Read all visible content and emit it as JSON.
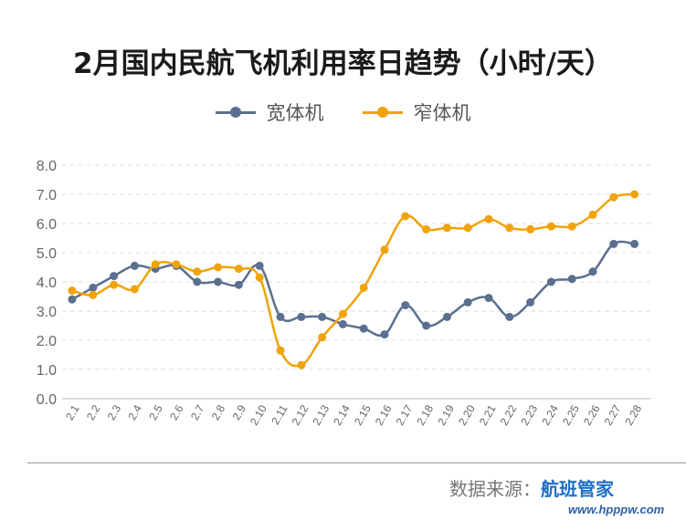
{
  "chart_data": {
    "type": "line",
    "title": "2月国内民航飞机利用率日趋势（小时/天）",
    "categories": [
      "2.1",
      "2.2",
      "2.3",
      "2.4",
      "2.5",
      "2.6",
      "2.7",
      "2.8",
      "2.9",
      "2.10",
      "2.11",
      "2.12",
      "2.13",
      "2.14",
      "2.15",
      "2.16",
      "2.17",
      "2.18",
      "2.19",
      "2.20",
      "2.21",
      "2.22",
      "2.23",
      "2.24",
      "2.25",
      "2.26",
      "2.27",
      "2.28"
    ],
    "series": [
      {
        "name": "宽体机",
        "color": "#5b6f8f",
        "values": [
          3.4,
          3.8,
          4.2,
          4.55,
          4.45,
          4.55,
          4.0,
          4.0,
          3.9,
          4.55,
          2.8,
          2.8,
          2.8,
          2.55,
          2.4,
          2.2,
          3.2,
          2.5,
          2.8,
          3.3,
          3.45,
          2.8,
          3.3,
          4.0,
          4.1,
          4.35,
          5.3,
          5.3
        ]
      },
      {
        "name": "窄体机",
        "color": "#f0a30a",
        "values": [
          3.7,
          3.55,
          3.9,
          3.75,
          4.6,
          4.6,
          4.35,
          4.5,
          4.45,
          4.15,
          1.65,
          1.15,
          2.1,
          2.9,
          3.8,
          5.1,
          6.25,
          5.8,
          5.85,
          5.85,
          6.15,
          5.85,
          5.8,
          5.9,
          5.9,
          6.3,
          6.9,
          7.0
        ]
      }
    ],
    "ylim": [
      0,
      8
    ],
    "yticks": [
      "0.0",
      "1.0",
      "2.0",
      "3.0",
      "4.0",
      "5.0",
      "6.0",
      "7.0",
      "8.0"
    ],
    "grid": true,
    "legend_position": "top-center"
  },
  "source": {
    "label": "数据来源：",
    "name": "航班管家"
  },
  "watermark": "www.hpppw.com"
}
